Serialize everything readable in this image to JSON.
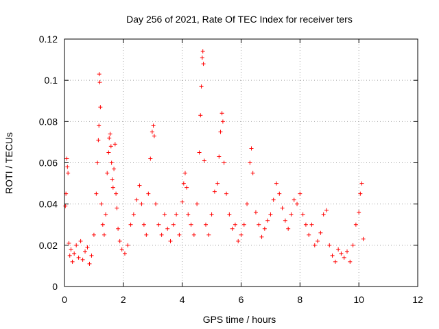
{
  "chart_data": {
    "type": "scatter",
    "title": "Day 256 of 2021, Rate Of TEC Index for receiver ters",
    "xlabel": "GPS time / hours",
    "ylabel": "ROTI / TECUs",
    "xlim": [
      0,
      12
    ],
    "ylim": [
      0,
      0.12
    ],
    "x_ticks": [
      "0",
      "2",
      "4",
      "6",
      "8",
      "10",
      "12"
    ],
    "y_ticks": [
      "0",
      "0.02",
      "0.04",
      "0.06",
      "0.08",
      "0.1",
      "0.12"
    ],
    "grid": true,
    "marker": "+",
    "color": "#ff0000",
    "series": [
      {
        "x": [
          0.03,
          0.05,
          0.08,
          0.1,
          0.12,
          0.15,
          0.18,
          0.22,
          0.27,
          0.33,
          0.4,
          0.48,
          0.55,
          0.62,
          0.7,
          0.78,
          0.85,
          0.92,
          1.0,
          1.08,
          1.12,
          1.15,
          1.17,
          1.18,
          1.2,
          1.22,
          1.25,
          1.3,
          1.35,
          1.4,
          1.45,
          1.5,
          1.52,
          1.55,
          1.58,
          1.6,
          1.62,
          1.65,
          1.68,
          1.72,
          1.75,
          1.78,
          1.82,
          1.88,
          1.95,
          2.05,
          2.15,
          2.25,
          2.35,
          2.45,
          2.55,
          2.62,
          2.7,
          2.78,
          2.85,
          2.92,
          2.98,
          3.02,
          3.05,
          3.1,
          3.2,
          3.3,
          3.4,
          3.5,
          3.6,
          3.7,
          3.8,
          3.9,
          4.0,
          4.05,
          4.1,
          4.15,
          4.2,
          4.3,
          4.4,
          4.5,
          4.58,
          4.62,
          4.65,
          4.68,
          4.7,
          4.72,
          4.75,
          4.8,
          4.9,
          5.0,
          5.1,
          5.2,
          5.25,
          5.3,
          5.35,
          5.38,
          5.42,
          5.5,
          5.6,
          5.7,
          5.8,
          5.9,
          6.0,
          6.1,
          6.2,
          6.3,
          6.35,
          6.4,
          6.5,
          6.6,
          6.7,
          6.8,
          6.9,
          7.0,
          7.1,
          7.2,
          7.3,
          7.4,
          7.5,
          7.6,
          7.7,
          7.8,
          7.9,
          8.0,
          8.1,
          8.2,
          8.3,
          8.4,
          8.5,
          8.6,
          8.7,
          8.8,
          8.9,
          9.0,
          9.1,
          9.2,
          9.3,
          9.4,
          9.5,
          9.6,
          9.7,
          9.8,
          9.9,
          10.0,
          10.05,
          10.1,
          10.15
        ],
        "y": [
          0.039,
          0.045,
          0.062,
          0.058,
          0.055,
          0.021,
          0.015,
          0.018,
          0.012,
          0.016,
          0.02,
          0.014,
          0.022,
          0.013,
          0.017,
          0.019,
          0.011,
          0.015,
          0.025,
          0.045,
          0.06,
          0.071,
          0.078,
          0.103,
          0.099,
          0.087,
          0.04,
          0.03,
          0.025,
          0.035,
          0.055,
          0.065,
          0.072,
          0.074,
          0.068,
          0.06,
          0.052,
          0.048,
          0.057,
          0.069,
          0.045,
          0.038,
          0.028,
          0.022,
          0.018,
          0.016,
          0.02,
          0.03,
          0.035,
          0.042,
          0.049,
          0.04,
          0.03,
          0.025,
          0.045,
          0.062,
          0.075,
          0.078,
          0.073,
          0.04,
          0.03,
          0.025,
          0.035,
          0.028,
          0.022,
          0.03,
          0.035,
          0.025,
          0.041,
          0.05,
          0.055,
          0.048,
          0.035,
          0.03,
          0.025,
          0.04,
          0.065,
          0.083,
          0.097,
          0.111,
          0.114,
          0.108,
          0.061,
          0.03,
          0.025,
          0.035,
          0.046,
          0.05,
          0.063,
          0.075,
          0.084,
          0.08,
          0.06,
          0.045,
          0.035,
          0.028,
          0.03,
          0.022,
          0.025,
          0.03,
          0.04,
          0.06,
          0.067,
          0.055,
          0.036,
          0.03,
          0.024,
          0.028,
          0.032,
          0.035,
          0.042,
          0.05,
          0.045,
          0.038,
          0.032,
          0.028,
          0.035,
          0.042,
          0.04,
          0.045,
          0.035,
          0.03,
          0.025,
          0.03,
          0.02,
          0.022,
          0.026,
          0.035,
          0.037,
          0.02,
          0.015,
          0.012,
          0.018,
          0.016,
          0.014,
          0.017,
          0.012,
          0.02,
          0.03,
          0.036,
          0.045,
          0.05,
          0.023
        ]
      }
    ]
  }
}
